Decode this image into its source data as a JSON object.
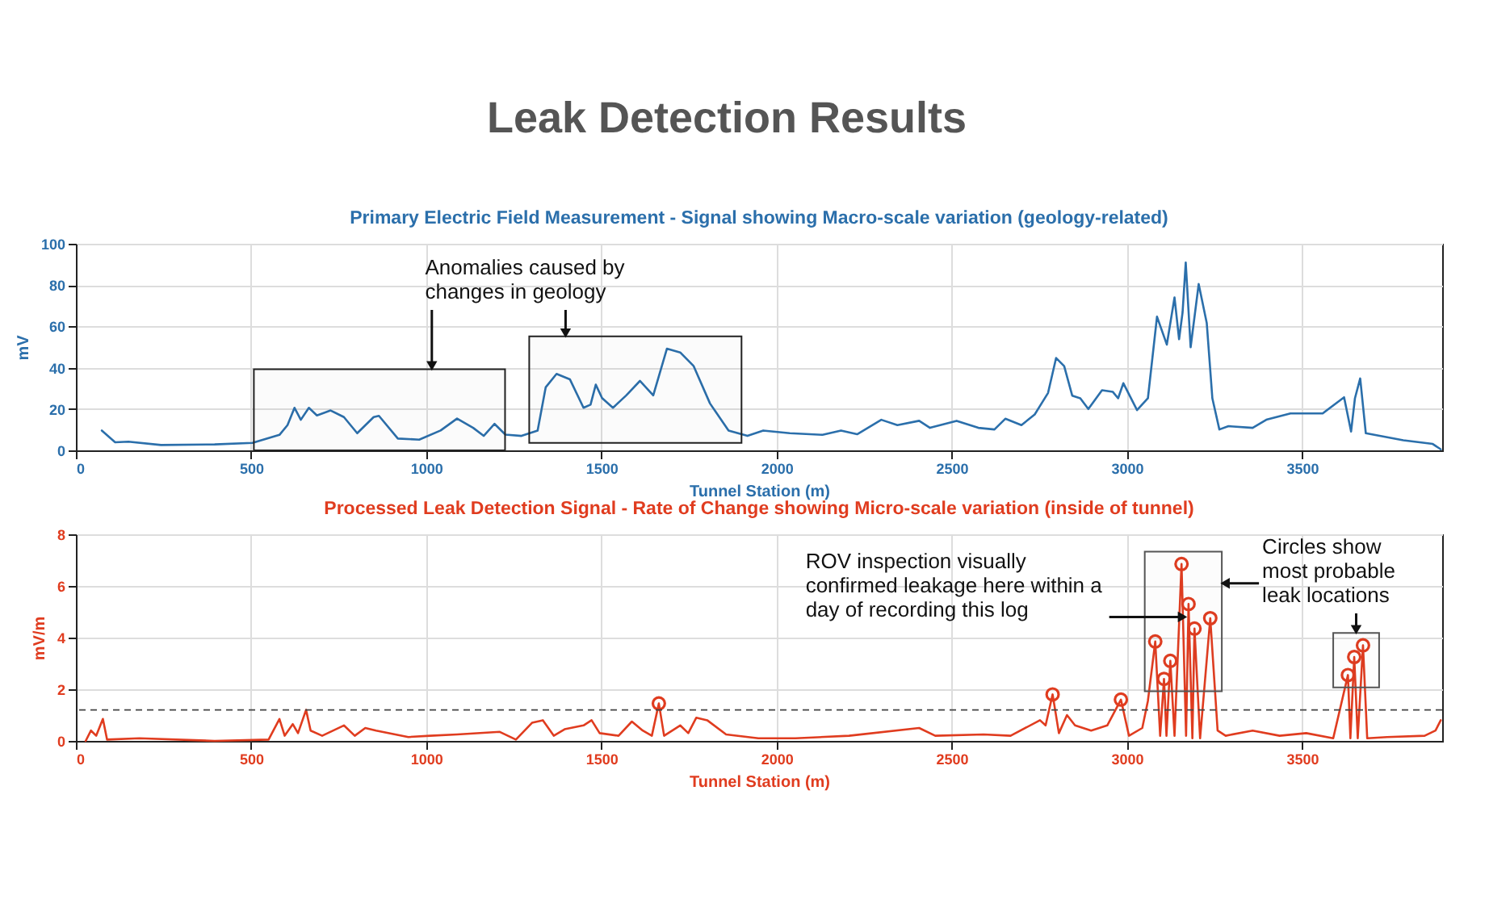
{
  "chart_data": [
    {
      "type": "other",
      "title": "Leak Detection Results"
    },
    {
      "type": "line",
      "title": "Primary Electric Field Measurement - Signal showing Macro-scale variation (geology-related)",
      "xlabel": "Tunnel Station (m)",
      "ylabel": "mV",
      "xlim": [
        0,
        3900
      ],
      "xticks": [
        0,
        500,
        1000,
        1500,
        2000,
        2500,
        3000,
        3500
      ],
      "ylim": [
        0,
        100
      ],
      "yticks": [
        0,
        20,
        40,
        60,
        80,
        100
      ],
      "grid": true,
      "series": [
        {
          "type": "line",
          "color": "#2b6fab",
          "x": [
            74,
            112,
            150,
            243,
            396,
            504,
            581,
            604,
            624,
            642,
            665,
            688,
            727,
            765,
            803,
            850,
            865,
            919,
            980,
            1041,
            1088,
            1134,
            1164,
            1195,
            1226,
            1272,
            1318,
            1341,
            1372,
            1410,
            1449,
            1469,
            1484,
            1502,
            1533,
            1571,
            1610,
            1648,
            1687,
            1725,
            1763,
            1810,
            1863,
            1917,
            1962,
            2038,
            2131,
            2184,
            2230,
            2299,
            2345,
            2407,
            2438,
            2514,
            2576,
            2622,
            2653,
            2699,
            2737,
            2775,
            2798,
            2821,
            2844,
            2867,
            2890,
            2929,
            2960,
            2975,
            2990,
            3029,
            3060,
            3086,
            3114,
            3136,
            3149,
            3159,
            3168,
            3182,
            3205,
            3228,
            3244,
            3264,
            3290,
            3359,
            3398,
            3467,
            3559,
            3620,
            3640,
            3651,
            3666,
            3682,
            3789,
            3873,
            3896
          ],
          "values": [
            9.6,
            3.9,
            4.2,
            2.6,
            2.9,
            3.6,
            7.5,
            12.2,
            20.6,
            14.8,
            20.6,
            16.9,
            19.3,
            16.1,
            8.3,
            16.1,
            16.7,
            5.7,
            5.2,
            9.6,
            15.4,
            10.9,
            7.0,
            12.8,
            7.6,
            7.0,
            9.6,
            30.5,
            37.0,
            34.4,
            20.6,
            22.1,
            31.8,
            25.3,
            20.6,
            26.6,
            33.6,
            26.6,
            49.2,
            47.4,
            40.9,
            22.7,
            9.6,
            7.0,
            9.6,
            8.3,
            7.5,
            9.6,
            7.8,
            14.8,
            12.2,
            14.3,
            10.9,
            14.3,
            10.9,
            10.1,
            15.3,
            12.2,
            17.4,
            27.8,
            44.7,
            40.8,
            26.5,
            25.2,
            20.0,
            29.1,
            28.3,
            25.2,
            32.5,
            19.5,
            25.2,
            64.7,
            51.2,
            74.0,
            53.8,
            66.8,
            90.9,
            49.9,
            80.5,
            61.6,
            25.2,
            10.1,
            11.7,
            10.9,
            14.8,
            17.9,
            17.9,
            25.7,
            9.1,
            25.2,
            34.8,
            8.3,
            4.9,
            3.1,
            0.5
          ]
        }
      ],
      "bands": [
        {
          "axis": "x",
          "from": 508,
          "to": 1225,
          "color": "#222222"
        },
        {
          "axis": "x",
          "from": 1294,
          "to": 1900,
          "color": "#222222"
        }
      ],
      "annotations": [
        {
          "text": "Anomalies caused by\nchanges in geology",
          "x": 1016,
          "y": 39.3
        }
      ]
    },
    {
      "type": "line",
      "title": "Processed Leak Detection Signal - Rate of Change showing Micro-scale variation (inside of tunnel)",
      "xlabel": "Tunnel Station (m)",
      "ylabel": "mV/m",
      "xlim": [
        0,
        3900
      ],
      "xticks": [
        0,
        500,
        1000,
        1500,
        2000,
        2500,
        3000,
        3500
      ],
      "ylim": [
        0,
        8
      ],
      "yticks": [
        0,
        2,
        4,
        6,
        8
      ],
      "grid": true,
      "series": [
        {
          "type": "line",
          "color": "#e03c1f",
          "x": [
            28,
            43,
            58,
            77,
            89,
            181,
            396,
            550,
            581,
            596,
            619,
            634,
            657,
            670,
            703,
            765,
            796,
            826,
            857,
            949,
            1011,
            1088,
            1210,
            1256,
            1302,
            1333,
            1364,
            1395,
            1449,
            1472,
            1495,
            1549,
            1587,
            1618,
            1644,
            1664,
            1679,
            1725,
            1748,
            1771,
            1802,
            1856,
            1948,
            2054,
            2207,
            2407,
            2453,
            2591,
            2668,
            2752,
            2768,
            2788,
            2806,
            2829,
            2852,
            2898,
            2944,
            2983,
            3006,
            3044,
            3060,
            3081,
            3095,
            3106,
            3113,
            3124,
            3136,
            3156,
            3169,
            3176,
            3187,
            3193,
            3209,
            3238,
            3259,
            3282,
            3359,
            3436,
            3512,
            3589,
            3631,
            3638,
            3649,
            3659,
            3674,
            3686,
            3743,
            3850,
            3881,
            3896
          ],
          "values": [
            0,
            0.4,
            0.2,
            0.85,
            0.05,
            0.1,
            0,
            0.05,
            0.85,
            0.2,
            0.65,
            0.3,
            1.2,
            0.4,
            0.2,
            0.6,
            0.2,
            0.5,
            0.4,
            0.15,
            0.2,
            0.25,
            0.35,
            0.05,
            0.7,
            0.8,
            0.2,
            0.45,
            0.6,
            0.8,
            0.3,
            0.2,
            0.75,
            0.4,
            0.2,
            1.45,
            0.2,
            0.6,
            0.3,
            0.9,
            0.8,
            0.25,
            0.1,
            0.1,
            0.2,
            0.5,
            0.2,
            0.25,
            0.2,
            0.8,
            0.6,
            1.8,
            0.3,
            1.0,
            0.6,
            0.4,
            0.6,
            1.6,
            0.2,
            0.5,
            1.55,
            3.85,
            0.2,
            2.4,
            0.2,
            3.1,
            0.2,
            6.85,
            0.2,
            5.3,
            0.1,
            4.35,
            0.1,
            4.75,
            0.4,
            0.2,
            0.4,
            0.2,
            0.3,
            0.1,
            2.55,
            0.1,
            3.25,
            0.1,
            3.7,
            0.1,
            0.15,
            0.2,
            0.4,
            0.8
          ]
        },
        {
          "type": "scatter",
          "color": "#e03c1f",
          "marker": "circle",
          "x": [
            1664,
            2788,
            2983,
            3081,
            3106,
            3124,
            3156,
            3176,
            3193,
            3238,
            3631,
            3649,
            3674
          ],
          "values": [
            1.45,
            1.8,
            1.6,
            3.85,
            2.4,
            3.1,
            6.85,
            5.3,
            4.35,
            4.75,
            2.55,
            3.25,
            3.7
          ]
        }
      ],
      "ref_lines": [
        {
          "axis": "y",
          "value": 1.2,
          "color": "#444444",
          "line_style": "dashed"
        }
      ],
      "bands": [
        {
          "axis": "x",
          "from": 3051,
          "to": 3271,
          "color": "#555555"
        },
        {
          "axis": "x",
          "from": 3589,
          "to": 3720,
          "color": "#555555"
        }
      ],
      "annotations": [
        {
          "text": "ROV inspection visually\nconfirmed leakage here within a\nday of recording this log",
          "x": 3168,
          "y": 4.8
        },
        {
          "text": "Circles show\nmost probable\nleak locations",
          "x": 3271,
          "y": 6.1
        }
      ]
    }
  ]
}
